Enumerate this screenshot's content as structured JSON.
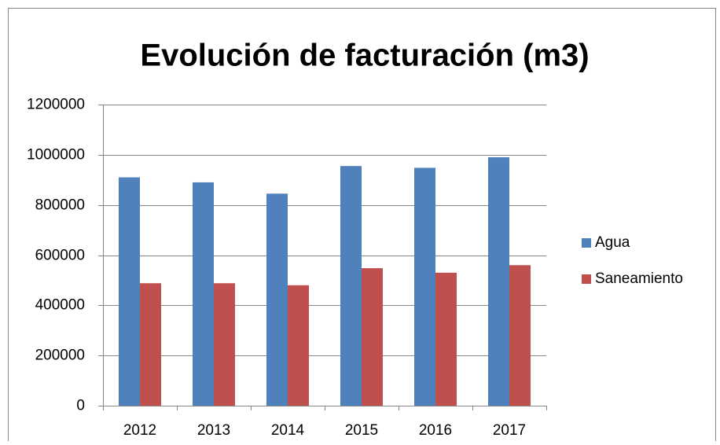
{
  "chart_data": {
    "type": "bar",
    "title": "Evolución de facturación (m3)",
    "categories": [
      "2012",
      "2013",
      "2014",
      "2015",
      "2016",
      "2017"
    ],
    "series": [
      {
        "name": "Agua",
        "color": "#4f81bd",
        "values": [
          910000,
          890000,
          845000,
          955000,
          948000,
          990000
        ]
      },
      {
        "name": "Saneamiento",
        "color": "#c0504d",
        "values": [
          488000,
          488000,
          480000,
          548000,
          530000,
          560000
        ]
      }
    ],
    "ylim": [
      0,
      1200000
    ],
    "yticks": [
      0,
      200000,
      400000,
      600000,
      800000,
      1000000,
      1200000
    ],
    "grid": true,
    "legend": "right"
  }
}
